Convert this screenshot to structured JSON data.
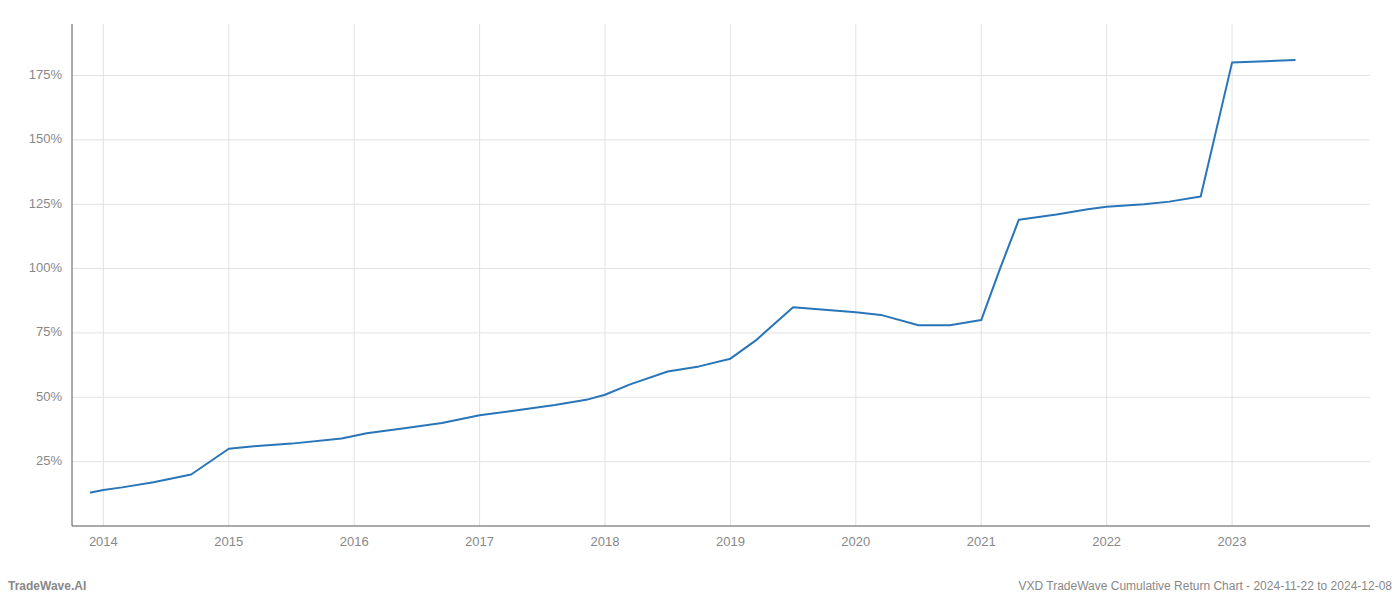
{
  "chart_data": {
    "type": "line",
    "x": [
      2013.9,
      2014.0,
      2014.15,
      2014.4,
      2014.7,
      2015.0,
      2015.2,
      2015.5,
      2015.9,
      2016.1,
      2016.4,
      2016.7,
      2017.0,
      2017.3,
      2017.6,
      2017.85,
      2018.0,
      2018.2,
      2018.5,
      2018.75,
      2019.0,
      2019.2,
      2019.5,
      2019.75,
      2020.0,
      2020.2,
      2020.5,
      2020.75,
      2021.0,
      2021.15,
      2021.3,
      2021.6,
      2021.85,
      2022.0,
      2022.3,
      2022.5,
      2022.75,
      2023.0,
      2023.5
    ],
    "values": [
      13,
      14,
      15,
      17,
      20,
      30,
      31,
      32,
      34,
      36,
      38,
      40,
      43,
      45,
      47,
      49,
      51,
      55,
      60,
      62,
      65,
      72,
      85,
      84,
      83,
      82,
      78,
      78,
      80,
      100,
      119,
      121,
      123,
      124,
      125,
      126,
      128,
      180,
      181
    ],
    "color": "#2876b8",
    "xlim": [
      2013.75,
      2024.1
    ],
    "ylim": [
      0,
      195
    ],
    "xticks": [
      2014,
      2015,
      2016,
      2017,
      2018,
      2019,
      2020,
      2021,
      2022,
      2023
    ],
    "yticks": [
      {
        "value": 25,
        "label": "25%"
      },
      {
        "value": 50,
        "label": "50%"
      },
      {
        "value": 75,
        "label": "75%"
      },
      {
        "value": 100,
        "label": "100%"
      },
      {
        "value": 125,
        "label": "125%"
      },
      {
        "value": 150,
        "label": "150%"
      },
      {
        "value": 175,
        "label": "175%"
      }
    ],
    "grid": true,
    "annotations": [
      "TradeWave.AI",
      "VXD TradeWave Cumulative Return Chart - 2024-11-22 to 2024-12-08"
    ]
  }
}
